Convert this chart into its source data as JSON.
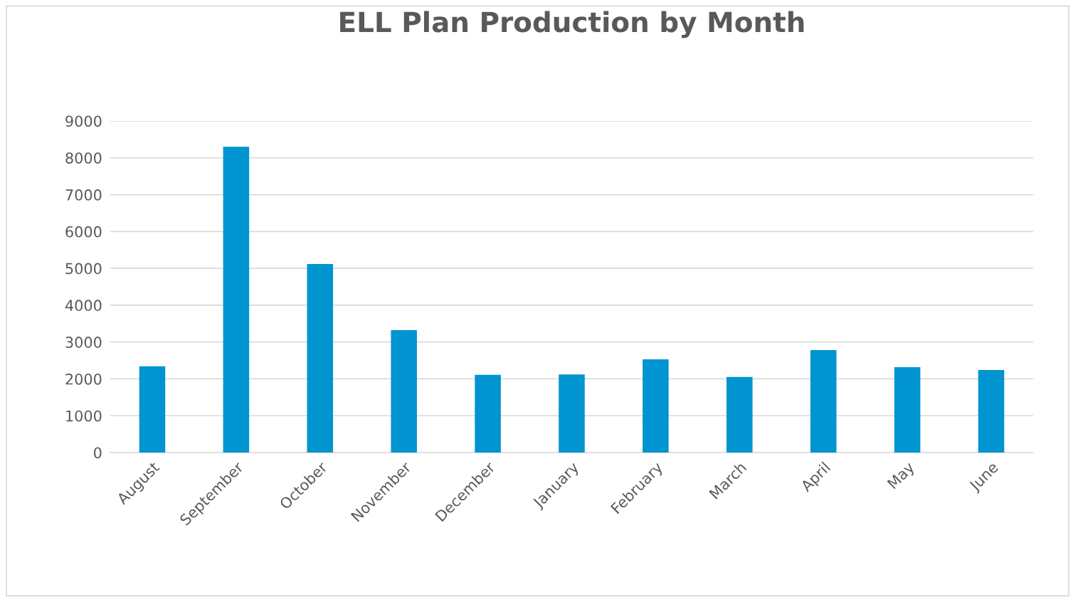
{
  "chart_data": {
    "type": "bar",
    "title": "ELL Plan Production by Month",
    "categories": [
      "August",
      "September",
      "October",
      "November",
      "December",
      "January",
      "February",
      "March",
      "April",
      "May",
      "June"
    ],
    "values": [
      2340,
      8300,
      5120,
      3320,
      2110,
      2120,
      2530,
      2050,
      2780,
      2320,
      2240
    ],
    "color": "#0094d0",
    "ylim": [
      0,
      9000
    ],
    "yticks": [
      0,
      1000,
      2000,
      3000,
      4000,
      5000,
      6000,
      7000,
      8000,
      9000
    ],
    "grid": "y",
    "legend": false
  }
}
